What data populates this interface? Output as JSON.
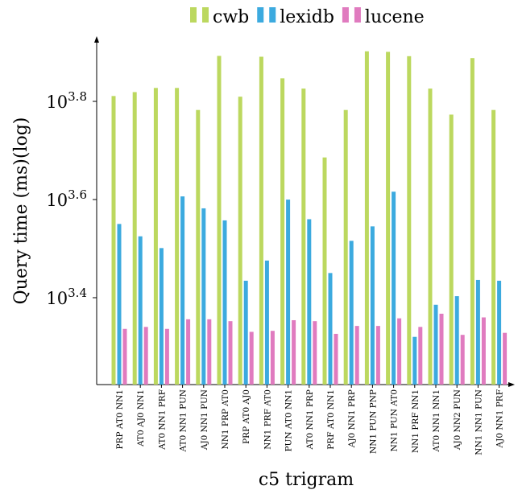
{
  "chart_data": {
    "type": "bar",
    "title": "",
    "xlabel": "c5 trigram",
    "ylabel": "Query time (ms)(log)",
    "yscale": "log10",
    "ylim": [
      1000,
      8400
    ],
    "yticks": [
      {
        "value": 2511.9,
        "base": "10",
        "exp": "3.4"
      },
      {
        "value": 3981.1,
        "base": "10",
        "exp": "3.6"
      },
      {
        "value": 6309.6,
        "base": "10",
        "exp": "3.8"
      }
    ],
    "legend_position": "top",
    "grid": false,
    "categories": [
      "PRP AT0 NN1",
      "AT0 AJ0 NN1",
      "AT0 NN1 PRF",
      "AT0 NN1 PUN",
      "AJ0 NN1 PUN",
      "NN1 PRP AT0",
      "PRP AT0 AJ0",
      "NN1 PRF AT0",
      "PUN AT0 NN1",
      "AT0 NN1 PRP",
      "PRF AT0 NN1",
      "AJ0 NN1 PRP",
      "NN1 PUN PNP",
      "NN1 PUN AT0",
      "NN1 PRF NN1",
      "AT0 NN1 NN1",
      "AJ0 NN2 PUN",
      "NN1 NN1 PUN",
      "AJ0 NN1 PRF"
    ],
    "series": [
      {
        "name": "cwb",
        "color": "#bcd85f",
        "values": [
          6470,
          6590,
          6720,
          6720,
          6060,
          7810,
          6450,
          7780,
          7030,
          6700,
          4850,
          6060,
          7980,
          7960,
          7800,
          6700,
          5930,
          7730,
          6060
        ]
      },
      {
        "name": "lexidb",
        "color": "#3caadf",
        "values": [
          3550,
          3350,
          3170,
          4040,
          3820,
          3610,
          2720,
          2990,
          3980,
          3630,
          2820,
          3280,
          3510,
          4130,
          2090,
          2430,
          2530,
          2730,
          2720
        ]
      },
      {
        "name": "lucene",
        "color": "#e07bbf",
        "values": [
          2170,
          2190,
          2170,
          2270,
          2270,
          2250,
          2140,
          2150,
          2260,
          2250,
          2120,
          2200,
          2200,
          2280,
          2190,
          2330,
          2110,
          2290,
          2130
        ]
      }
    ]
  }
}
